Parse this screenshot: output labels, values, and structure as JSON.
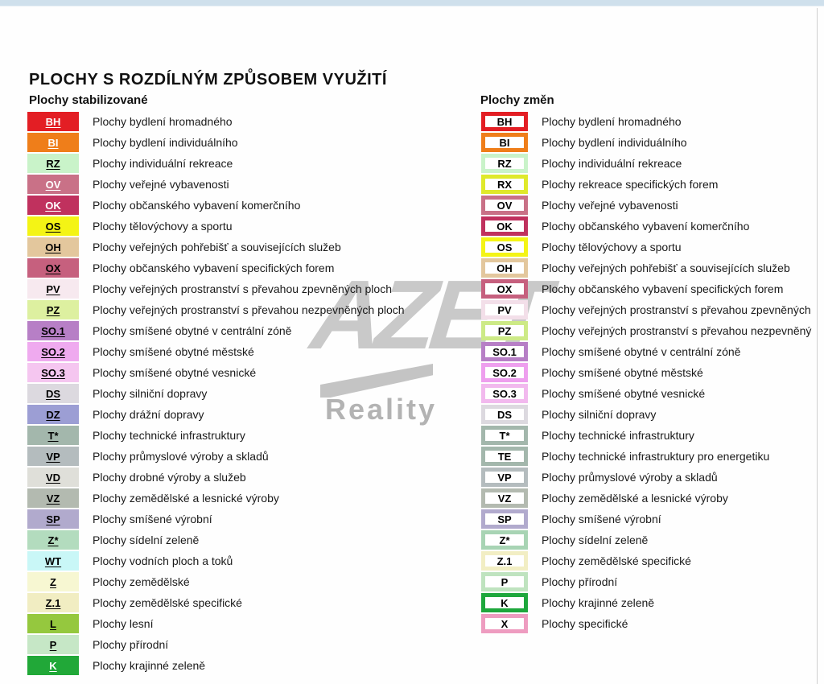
{
  "title": "PLOCHY S ROZDÍLNÝM ZPŮSOBEM VYUŽITÍ",
  "watermark": {
    "line1": "AZET",
    "line2": "Reality"
  },
  "colors": {
    "top_bar": "#cfe0ec",
    "right_divider": "#cfcfcf",
    "watermark_big": "#c9c9c9",
    "watermark_small": "#b3b3b3",
    "label_text": "#1a1a1a"
  },
  "stabilized": {
    "header": "Plochy stabilizované",
    "items": [
      {
        "code": "BH",
        "label": "Plochy bydlení hromadného",
        "color": "#e31e24",
        "text": "#ffffff"
      },
      {
        "code": "BI",
        "label": "Plochy bydlení individuálního",
        "color": "#ef7e1a",
        "text": "#ffffff"
      },
      {
        "code": "RZ",
        "label": "Plochy individuální rekreace",
        "color": "#c9f3c9",
        "text": "#000000"
      },
      {
        "code": "OV",
        "label": "Plochy veřejné vybavenosti",
        "color": "#c97187",
        "text": "#ffffff"
      },
      {
        "code": "OK",
        "label": "Plochy občanského vybavení komerčního",
        "color": "#c0315e",
        "text": "#ffffff"
      },
      {
        "code": "OS",
        "label": "Plochy tělovýchovy a sportu",
        "color": "#f4f415",
        "text": "#000000"
      },
      {
        "code": "OH",
        "label": "Plochy veřejných pohřebišť a souvisejících služeb",
        "color": "#e3c79d",
        "text": "#000000"
      },
      {
        "code": "OX",
        "label": "Plochy občanského vybavení specifických forem",
        "color": "#c6607e",
        "text": "#000000"
      },
      {
        "code": "PV",
        "label": "Plochy veřejných prostranství s převahou zpevněných ploch",
        "color": "#f7e9ef",
        "text": "#000000"
      },
      {
        "code": "PZ",
        "label": "Plochy veřejných prostranství s převahou nezpevněných ploch",
        "color": "#ddf0a0",
        "text": "#000000"
      },
      {
        "code": "SO.1",
        "label": "Plochy smíšené obytné v centrální zóně",
        "color": "#b77fc6",
        "text": "#000000"
      },
      {
        "code": "SO.2",
        "label": "Plochy smíšené obytné městské",
        "color": "#efaaef",
        "text": "#000000"
      },
      {
        "code": "SO.3",
        "label": "Plochy smíšené obytné vesnické",
        "color": "#f5c6f0",
        "text": "#000000"
      },
      {
        "code": "DS",
        "label": "Plochy silniční dopravy",
        "color": "#dcd9df",
        "text": "#000000"
      },
      {
        "code": "DZ",
        "label": "Plochy drážní dopravy",
        "color": "#9c9ed4",
        "text": "#000000"
      },
      {
        "code": "T*",
        "label": "Plochy technické infrastruktury",
        "color": "#a3b7ac",
        "text": "#000000"
      },
      {
        "code": "VP",
        "label": "Plochy průmyslové výroby a skladů",
        "color": "#b4bcbe",
        "text": "#000000"
      },
      {
        "code": "VD",
        "label": "Plochy drobné výroby a služeb",
        "color": "#dfdfd9",
        "text": "#000000"
      },
      {
        "code": "VZ",
        "label": "Plochy zemědělské a lesnické výroby",
        "color": "#b3bab0",
        "text": "#000000"
      },
      {
        "code": "SP",
        "label": "Plochy smíšené výrobní",
        "color": "#b1aacd",
        "text": "#000000"
      },
      {
        "code": "Z*",
        "label": "Plochy sídelní zeleně",
        "color": "#b3dcbe",
        "text": "#000000"
      },
      {
        "code": "WT",
        "label": "Plochy vodních ploch a toků",
        "color": "#c9f7f7",
        "text": "#000000"
      },
      {
        "code": "Z",
        "label": "Plochy zemědělské",
        "color": "#f7f7d2",
        "text": "#000000"
      },
      {
        "code": "Z.1",
        "label": "Plochy zemědělské specifické",
        "color": "#f1edc2",
        "text": "#000000"
      },
      {
        "code": "L",
        "label": "Plochy lesní",
        "color": "#95c83e",
        "text": "#000000"
      },
      {
        "code": "P",
        "label": "Plochy přírodní",
        "color": "#c6e7c6",
        "text": "#000000"
      },
      {
        "code": "K",
        "label": "Plochy krajinné zeleně",
        "color": "#21a838",
        "text": "#ffffff"
      }
    ]
  },
  "changes": {
    "header": "Plochy změn",
    "items": [
      {
        "code": "BH",
        "label": "Plochy bydlení hromadného",
        "color": "#e31e24"
      },
      {
        "code": "BI",
        "label": "Plochy bydlení individuálního",
        "color": "#ef7e1a"
      },
      {
        "code": "RZ",
        "label": "Plochy individuální rekreace",
        "color": "#c9f3c9"
      },
      {
        "code": "RX",
        "label": "Plochy rekreace specifických forem",
        "color": "#dfe92b"
      },
      {
        "code": "OV",
        "label": "Plochy veřejné vybavenosti",
        "color": "#c97187"
      },
      {
        "code": "OK",
        "label": "Plochy občanského vybavení komerčního",
        "color": "#c0315e"
      },
      {
        "code": "OS",
        "label": "Plochy tělovýchovy a sportu",
        "color": "#f4f415"
      },
      {
        "code": "OH",
        "label": "Plochy veřejných pohřebišť a souvisejících služeb",
        "color": "#e3c79d"
      },
      {
        "code": "OX",
        "label": "Plochy občanského vybavení specifických forem",
        "color": "#c6607e"
      },
      {
        "code": "PV",
        "label": "Plochy veřejných prostranství s převahou zpevněných",
        "color": "#f3dfe9"
      },
      {
        "code": "PZ",
        "label": "Plochy veřejných prostranství s převahou nezpevněný",
        "color": "#cdea86"
      },
      {
        "code": "SO.1",
        "label": "Plochy smíšené obytné v centrální zóně",
        "color": "#b77fc6"
      },
      {
        "code": "SO.2",
        "label": "Plochy smíšené obytné městské",
        "color": "#ee9fee"
      },
      {
        "code": "SO.3",
        "label": "Plochy smíšené obytné vesnické",
        "color": "#f2b9ee"
      },
      {
        "code": "DS",
        "label": "Plochy silniční dopravy",
        "color": "#dcd9df"
      },
      {
        "code": "T*",
        "label": "Plochy technické infrastruktury",
        "color": "#a3b7ac"
      },
      {
        "code": "TE",
        "label": "Plochy technické infrastruktury pro energetiku",
        "color": "#a3b7ac"
      },
      {
        "code": "VP",
        "label": "Plochy průmyslové výroby a skladů",
        "color": "#b4bcbe"
      },
      {
        "code": "VZ",
        "label": "Plochy zemědělské a lesnické výroby",
        "color": "#b3bab0"
      },
      {
        "code": "SP",
        "label": "Plochy smíšené výrobní",
        "color": "#b1aacd"
      },
      {
        "code": "Z*",
        "label": "Plochy sídelní zeleně",
        "color": "#a8d4b4"
      },
      {
        "code": "Z.1",
        "label": "Plochy zemědělské specifické",
        "color": "#f2eec4"
      },
      {
        "code": "P",
        "label": "Plochy přírodní",
        "color": "#bfe3bf"
      },
      {
        "code": "K",
        "label": "Plochy krajinné zeleně",
        "color": "#1ea73c"
      },
      {
        "code": "X",
        "label": "Plochy specifické",
        "color": "#ee9cc0"
      }
    ]
  }
}
